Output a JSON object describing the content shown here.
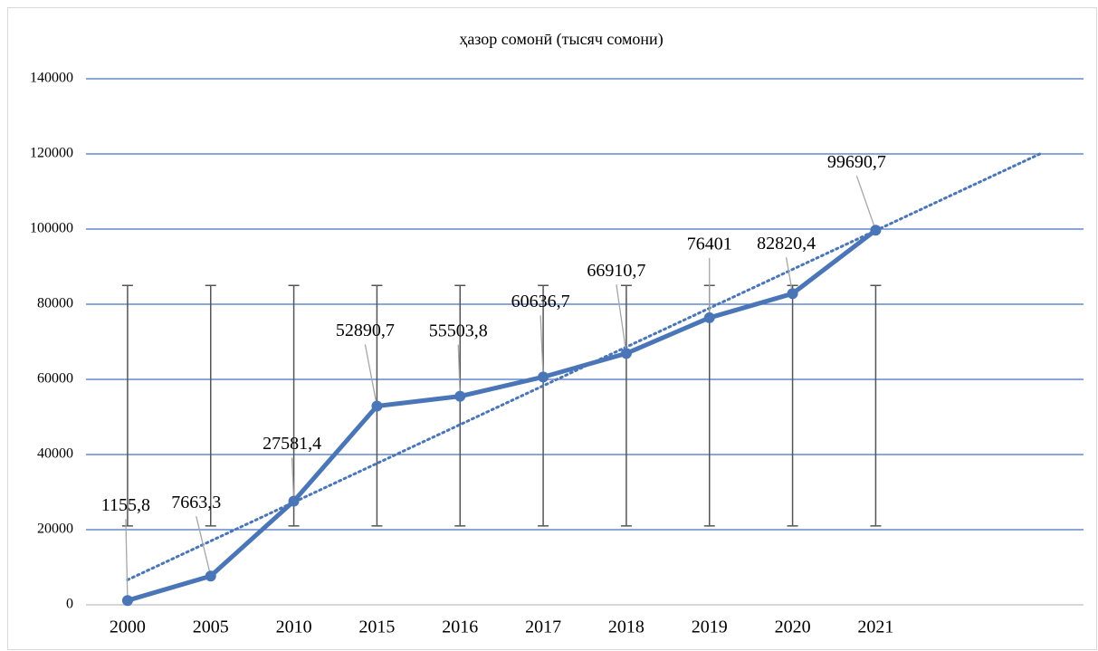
{
  "chart_data": {
    "type": "line",
    "title": "ҳазор сомонӣ (тысяч сомони)",
    "categories": [
      "2000",
      "2005",
      "2010",
      "2015",
      "2016",
      "2017",
      "2018",
      "2019",
      "2020",
      "2021"
    ],
    "series": [
      {
        "name": "ҳазор сомонӣ",
        "color": "#4a76b8",
        "values": [
          1155.8,
          7663.3,
          27581.4,
          52890.7,
          55503.8,
          60636.7,
          66910.7,
          76401,
          82820.4,
          99690.7
        ],
        "value_labels": [
          "1155,8",
          "7663,3",
          "27581,4",
          "52890,7",
          "55503,8",
          "60636,7",
          "66910,7",
          "76401",
          "82820,4",
          "99690,7"
        ]
      }
    ],
    "error_range": [
      21000,
      85000
    ],
    "error_color": "#555555",
    "trendline": {
      "type": "linear",
      "forward": 2,
      "color": "#4a76b8"
    },
    "ylim": [
      0,
      140000
    ],
    "yticks": [
      0,
      20000,
      40000,
      60000,
      80000,
      100000,
      120000,
      140000
    ],
    "grid": true,
    "grid_color": "#4472c4"
  }
}
